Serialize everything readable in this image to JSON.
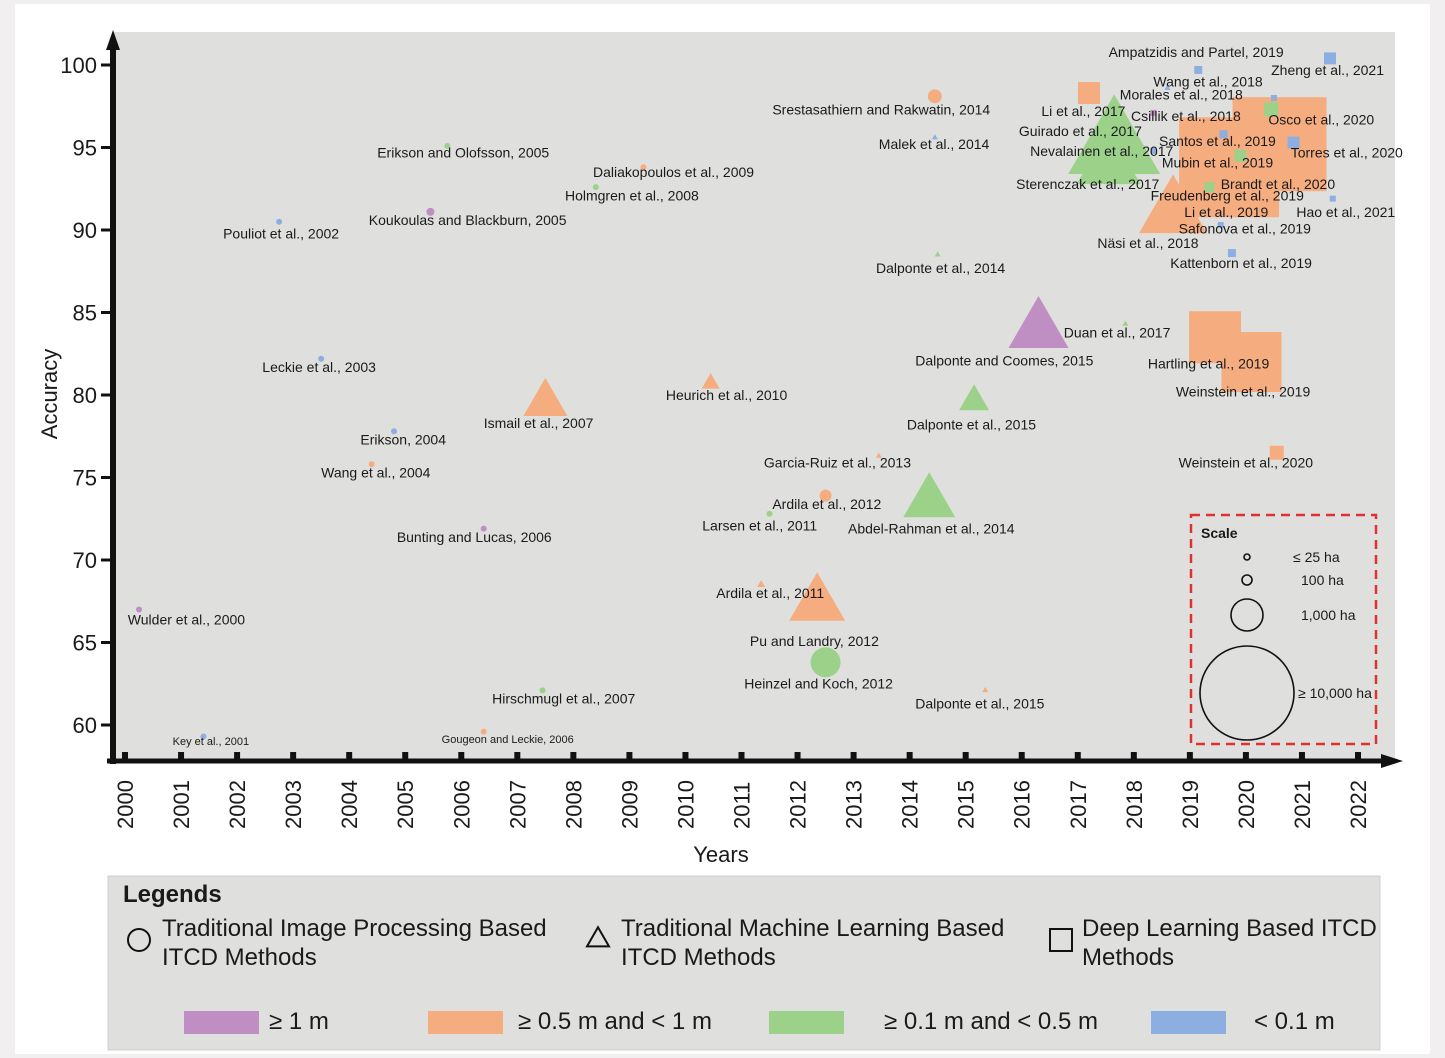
{
  "chart_data": {
    "type": "scatter",
    "xlabel": "Years",
    "ylabel": "Accuracy",
    "x_ticks": [
      "2000",
      "2001",
      "2002",
      "2003",
      "2004",
      "2005",
      "2006",
      "2007",
      "2008",
      "2009",
      "2010",
      "2011",
      "2012",
      "2013",
      "2014",
      "2015",
      "2016",
      "2017",
      "2018",
      "2019",
      "2020",
      "2021",
      "2022"
    ],
    "y_ticks": [
      60,
      65,
      70,
      75,
      80,
      85,
      90,
      95,
      100
    ],
    "xlim": [
      2000,
      2022
    ],
    "ylim": [
      60,
      100
    ],
    "colors": {
      "ge1m": "#bf8fc4",
      "ge05m": "#f5ad80",
      "ge01m": "#9cd18a",
      "lt01m": "#8daee0",
      "plot_bg": "#dfe0de",
      "scale_border": "#e03030"
    },
    "points": [
      {
        "label": "Wulder et al., 2000",
        "year": 2000.25,
        "accuracy": 67.0,
        "shape": "circle",
        "color": "ge1m",
        "size": 3
      },
      {
        "label": "Key et al., 2001",
        "year": 2001.4,
        "accuracy": 59.3,
        "shape": "circle",
        "color": "lt01m",
        "size": 3,
        "small": true
      },
      {
        "label": "Pouliot et al., 2002",
        "year": 2002.75,
        "accuracy": 90.5,
        "shape": "circle",
        "color": "lt01m",
        "size": 3
      },
      {
        "label": "Leckie et al., 2003",
        "year": 2003.5,
        "accuracy": 82.2,
        "shape": "circle",
        "color": "lt01m",
        "size": 3
      },
      {
        "label": "Erikson, 2004",
        "year": 2004.8,
        "accuracy": 77.8,
        "shape": "circle",
        "color": "lt01m",
        "size": 3
      },
      {
        "label": "Wang et al., 2004",
        "year": 2004.4,
        "accuracy": 75.8,
        "shape": "circle",
        "color": "ge05m",
        "size": 3
      },
      {
        "label": "Erikson and Olofsson, 2005",
        "year": 2005.75,
        "accuracy": 95.1,
        "shape": "circle",
        "color": "ge01m",
        "size": 3
      },
      {
        "label": "Koukoulas and Blackburn, 2005",
        "year": 2005.45,
        "accuracy": 91.1,
        "shape": "circle",
        "color": "ge1m",
        "size": 4
      },
      {
        "label": "Bunting and Lucas, 2006",
        "year": 2006.4,
        "accuracy": 71.9,
        "shape": "circle",
        "color": "ge1m",
        "size": 3
      },
      {
        "label": "Gougeon and Leckie, 2006",
        "year": 2006.4,
        "accuracy": 59.6,
        "shape": "circle",
        "color": "ge05m",
        "size": 3,
        "small": true
      },
      {
        "label": "Hirschmugl et al., 2007",
        "year": 2007.45,
        "accuracy": 62.1,
        "shape": "circle",
        "color": "ge01m",
        "size": 3
      },
      {
        "label": "Ismail et al., 2007",
        "year": 2007.5,
        "accuracy": 79.5,
        "shape": "triangle",
        "color": "ge05m",
        "size": 22
      },
      {
        "label": "Holmgren et al., 2008",
        "year": 2008.4,
        "accuracy": 92.6,
        "shape": "circle",
        "color": "ge01m",
        "size": 3
      },
      {
        "label": "Daliakopoulos et al., 2009",
        "year": 2009.25,
        "accuracy": 93.8,
        "shape": "circle",
        "color": "ge05m",
        "size": 3
      },
      {
        "label": "Heurich et al., 2010",
        "year": 2010.45,
        "accuracy": 80.7,
        "shape": "triangle",
        "color": "ge05m",
        "size": 9
      },
      {
        "label": "Ardila et al., 2011",
        "year": 2011.35,
        "accuracy": 68.5,
        "shape": "triangle",
        "color": "ge05m",
        "size": 4
      },
      {
        "label": "Larsen et al., 2011",
        "year": 2011.5,
        "accuracy": 72.8,
        "shape": "circle",
        "color": "ge01m",
        "size": 3
      },
      {
        "label": "Ardila et al., 2012",
        "year": 2012.5,
        "accuracy": 73.9,
        "shape": "circle",
        "color": "ge05m",
        "size": 6
      },
      {
        "label": "Pu and Landry, 2012",
        "year": 2012.35,
        "accuracy": 67.3,
        "shape": "triangle",
        "color": "ge05m",
        "size": 28
      },
      {
        "label": "Heinzel and Koch, 2012",
        "year": 2012.5,
        "accuracy": 63.8,
        "shape": "circle",
        "color": "ge01m",
        "size": 15
      },
      {
        "label": "Garcia-Ruiz et al., 2013",
        "year": 2013.45,
        "accuracy": 76.3,
        "shape": "triangle",
        "color": "ge05m",
        "size": 3
      },
      {
        "label": "Abdel-Rahman et al., 2014",
        "year": 2014.35,
        "accuracy": 73.5,
        "shape": "triangle",
        "color": "ge01m",
        "size": 26
      },
      {
        "label": "Srestasathiern and Rakwatin, 2014",
        "year": 2014.45,
        "accuracy": 98.1,
        "shape": "circle",
        "color": "ge05m",
        "size": 7
      },
      {
        "label": "Malek et al., 2014",
        "year": 2014.45,
        "accuracy": 95.6,
        "shape": "triangle",
        "color": "lt01m",
        "size": 3
      },
      {
        "label": "Dalponte et al., 2014",
        "year": 2014.5,
        "accuracy": 88.5,
        "shape": "triangle",
        "color": "ge01m",
        "size": 3
      },
      {
        "label": "Dalponte et al., 2015",
        "year": 2015.15,
        "accuracy": 79.6,
        "shape": "triangle",
        "color": "ge01m",
        "size": 15
      },
      {
        "label": "Dalponte et al., 2015",
        "year": 2015.35,
        "accuracy": 62.1,
        "shape": "triangle",
        "color": "ge05m",
        "size": 3
      },
      {
        "label": "Dalponte and Coomes, 2015",
        "year": 2016.3,
        "accuracy": 83.9,
        "shape": "triangle",
        "color": "ge1m",
        "size": 30
      },
      {
        "label": "Duan et al., 2017",
        "year": 2017.85,
        "accuracy": 84.3,
        "shape": "triangle",
        "color": "ge01m",
        "size": 3
      },
      {
        "label": "Li et al., 2017",
        "year": 2017.2,
        "accuracy": 98.3,
        "shape": "square",
        "color": "ge05m",
        "size": 11
      },
      {
        "label": "Guirado et al., 2017",
        "year": 2017.25,
        "accuracy": 95.0,
        "shape": "square",
        "color": "ge01m",
        "size": 3
      },
      {
        "label": "Nevalainen et al., 2017",
        "year": 2017.55,
        "accuracy": 93.9,
        "shape": "triangle",
        "color": "ge01m",
        "size": 32
      },
      {
        "label": "Sterenczak et al., 2017",
        "year": 2017.65,
        "accuracy": 95.0,
        "shape": "triangle",
        "color": "ge01m",
        "size": 46
      },
      {
        "label": "Wang et al., 2018",
        "year": 2018.6,
        "accuracy": 98.6,
        "shape": "triangle",
        "color": "lt01m",
        "size": 3
      },
      {
        "label": "Morales et al., 2018",
        "year": 2018.35,
        "accuracy": 97.1,
        "shape": "square",
        "color": "ge1m",
        "size": 3
      },
      {
        "label": "Csillik et al., 2018",
        "year": 2018.35,
        "accuracy": 94.8,
        "shape": "square",
        "color": "lt01m",
        "size": 3
      },
      {
        "label": "Näsi et al., 2018",
        "year": 2018.7,
        "accuracy": 91.0,
        "shape": "triangle",
        "color": "ge05m",
        "size": 34
      },
      {
        "label": "Ampatzidis and Partel, 2019",
        "year": 2019.15,
        "accuracy": 99.7,
        "shape": "square",
        "color": "lt01m",
        "size": 4
      },
      {
        "label": "Santos et al., 2019",
        "year": 2019.6,
        "accuracy": 95.8,
        "shape": "square",
        "color": "lt01m",
        "size": 4
      },
      {
        "label": "Mubin et al., 2019",
        "year": 2019.9,
        "accuracy": 94.5,
        "shape": "square",
        "color": "ge01m",
        "size": 6
      },
      {
        "label": "Freudenberg et al., 2019",
        "year": 2019.7,
        "accuracy": 93.8,
        "shape": "square",
        "color": "ge05m",
        "size": 50
      },
      {
        "label": "Li et al., 2019",
        "year": 2019.35,
        "accuracy": 92.6,
        "shape": "square",
        "color": "ge01m",
        "size": 5
      },
      {
        "label": "Safonova et al., 2019",
        "year": 2019.55,
        "accuracy": 90.3,
        "shape": "square",
        "color": "lt01m",
        "size": 3
      },
      {
        "label": "Kattenborn et al., 2019",
        "year": 2019.75,
        "accuracy": 88.6,
        "shape": "square",
        "color": "lt01m",
        "size": 4
      },
      {
        "label": "Hartling et al., 2019",
        "year": 2019.45,
        "accuracy": 83.5,
        "shape": "square",
        "color": "ge05m",
        "size": 26
      },
      {
        "label": "Weinstein et al., 2019",
        "year": 2020.1,
        "accuracy": 82.0,
        "shape": "square",
        "color": "ge05m",
        "size": 30
      },
      {
        "label": "Zheng et al., 2021",
        "year": 2020.45,
        "accuracy": 97.3,
        "shape": "square",
        "color": "ge01m",
        "size": 7
      },
      {
        "label": "Osco et al., 2020",
        "year": 2020.6,
        "accuracy": 95.2,
        "shape": "square",
        "color": "ge05m",
        "size": 47
      },
      {
        "label": "Torres et al., 2020",
        "year": 2020.85,
        "accuracy": 95.3,
        "shape": "square",
        "color": "lt01m",
        "size": 6
      },
      {
        "label": "Brandt et al., 2020",
        "year": 2020.5,
        "accuracy": 98.0,
        "shape": "square",
        "color": "lt01m",
        "size": 3
      },
      {
        "label": "Weinstein et al., 2020",
        "year": 2020.55,
        "accuracy": 76.5,
        "shape": "square",
        "color": "ge05m",
        "size": 7
      },
      {
        "label": "Hao et al., 2021",
        "year": 2021.55,
        "accuracy": 91.9,
        "shape": "square",
        "color": "lt01m",
        "size": 3
      },
      {
        "label": "",
        "year": 2021.5,
        "accuracy": 100.4,
        "shape": "square",
        "color": "lt01m",
        "size": 6
      }
    ],
    "labels": [
      {
        "text": "Wulder et al., 2000",
        "x": 2000.05,
        "y": 66.1
      },
      {
        "text": "Key et al., 2001",
        "x": 2000.85,
        "y": 58.8,
        "small": true
      },
      {
        "text": "Pouliot et al., 2002",
        "x": 2001.75,
        "y": 89.5
      },
      {
        "text": "Leckie et al., 2003",
        "x": 2002.45,
        "y": 81.4
      },
      {
        "text": "Erikson, 2004",
        "x": 2004.2,
        "y": 77.0
      },
      {
        "text": "Wang et al., 2004",
        "x": 2003.5,
        "y": 75.0
      },
      {
        "text": "Erikson and Olofsson, 2005",
        "x": 2004.5,
        "y": 94.4
      },
      {
        "text": "Koukoulas and Blackburn, 2005",
        "x": 2004.35,
        "y": 90.3
      },
      {
        "text": "Bunting and Lucas, 2006",
        "x": 2004.85,
        "y": 71.1
      },
      {
        "text": "Gougeon and Leckie, 2006",
        "x": 2005.65,
        "y": 58.9,
        "small": true
      },
      {
        "text": "Hirschmugl et al., 2007",
        "x": 2006.55,
        "y": 61.3
      },
      {
        "text": "Ismail et al., 2007",
        "x": 2006.4,
        "y": 78.0
      },
      {
        "text": "Holmgren et al., 2008",
        "x": 2007.85,
        "y": 91.8
      },
      {
        "text": "Daliakopoulos et al., 2009",
        "x": 2008.35,
        "y": 93.2
      },
      {
        "text": "Heurich et al., 2010",
        "x": 2009.65,
        "y": 79.7
      },
      {
        "text": "Ardila et al., 2011",
        "x": 2010.55,
        "y": 67.7
      },
      {
        "text": "Larsen et al., 2011",
        "x": 2010.3,
        "y": 71.8
      },
      {
        "text": "Ardila et al., 2012",
        "x": 2011.55,
        "y": 73.1
      },
      {
        "text": "Pu and Landry, 2012",
        "x": 2011.15,
        "y": 64.8
      },
      {
        "text": "Heinzel and Koch, 2012",
        "x": 2011.05,
        "y": 62.2
      },
      {
        "text": "Garcia-Ruiz et al., 2013",
        "x": 2011.4,
        "y": 75.6
      },
      {
        "text": "Abdel-Rahman et al., 2014",
        "x": 2012.9,
        "y": 71.6
      },
      {
        "text": "Srestasathiern and Rakwatin, 2014",
        "x": 2011.55,
        "y": 97.0
      },
      {
        "text": "Malek et al., 2014",
        "x": 2013.45,
        "y": 94.9
      },
      {
        "text": "Dalponte et al., 2014",
        "x": 2013.4,
        "y": 87.4
      },
      {
        "text": "Dalponte et al., 2015",
        "x": 2013.95,
        "y": 77.9
      },
      {
        "text": "Dalponte et al., 2015",
        "x": 2014.1,
        "y": 61.0
      },
      {
        "text": "Dalponte and Coomes, 2015",
        "x": 2014.1,
        "y": 81.8
      },
      {
        "text": "Duan et al., 2017",
        "x": 2016.75,
        "y": 83.5
      },
      {
        "text": "Ampatzidis and Partel, 2019",
        "x": 2017.55,
        "y": 100.5
      },
      {
        "text": "Zheng et al., 2021",
        "x": 2020.45,
        "y": 99.4
      },
      {
        "text": "Wang et al., 2018",
        "x": 2018.35,
        "y": 98.7
      },
      {
        "text": "Morales et al., 2018",
        "x": 2017.75,
        "y": 97.9
      },
      {
        "text": "Li et al., 2017",
        "x": 2016.35,
        "y": 96.9
      },
      {
        "text": "Csillik et al., 2018",
        "x": 2017.95,
        "y": 96.6
      },
      {
        "text": "Guirado et al., 2017",
        "x": 2015.95,
        "y": 95.7
      },
      {
        "text": "Osco et al., 2020",
        "x": 2020.4,
        "y": 96.4
      },
      {
        "text": "Santos et al., 2019",
        "x": 2018.45,
        "y": 95.1
      },
      {
        "text": "Nevalainen et al., 2017",
        "x": 2016.15,
        "y": 94.5
      },
      {
        "text": "Torres et al., 2020",
        "x": 2020.8,
        "y": 94.4
      },
      {
        "text": "Mubin et al., 2019",
        "x": 2018.5,
        "y": 93.8
      },
      {
        "text": "Sterenczak et al., 2017",
        "x": 2015.9,
        "y": 92.5
      },
      {
        "text": "Brandt et al., 2020",
        "x": 2019.55,
        "y": 92.5
      },
      {
        "text": "Freudenberg et al., 2019",
        "x": 2018.3,
        "y": 91.8
      },
      {
        "text": "Li et al., 2019",
        "x": 2018.9,
        "y": 90.8
      },
      {
        "text": "Hao et al., 2021",
        "x": 2020.9,
        "y": 90.8
      },
      {
        "text": "Safonova et al., 2019",
        "x": 2018.8,
        "y": 89.8
      },
      {
        "text": "Näsi et al., 2018",
        "x": 2017.35,
        "y": 88.9
      },
      {
        "text": "Kattenborn et al., 2019",
        "x": 2018.65,
        "y": 87.7
      },
      {
        "text": "Hartling et al., 2019",
        "x": 2018.25,
        "y": 81.6
      },
      {
        "text": "Weinstein et al., 2019",
        "x": 2018.75,
        "y": 79.9
      },
      {
        "text": "Weinstein et al., 2020",
        "x": 2018.8,
        "y": 75.6
      }
    ]
  },
  "scale": {
    "title": "Scale",
    "items": [
      {
        "label": "≤ 25 ha",
        "radius": 3
      },
      {
        "label": "100 ha",
        "radius": 5
      },
      {
        "label": "1,000 ha",
        "radius": 16
      },
      {
        "label": "≥ 10,000 ha",
        "radius": 47
      }
    ]
  },
  "legend": {
    "title": "Legends",
    "shapes": [
      {
        "shape": "circle",
        "line1": "Traditional Image Processing Based",
        "line2": "ITCD Methods"
      },
      {
        "shape": "triangle",
        "line1": "Traditional Machine Learning Based",
        "line2": "ITCD Methods"
      },
      {
        "shape": "square",
        "line1": "Deep Learning Based ITCD",
        "line2": "Methods"
      }
    ],
    "resolutions": [
      {
        "label": "≥ 1 m",
        "color": "ge1m"
      },
      {
        "label": "≥ 0.5 m and < 1 m",
        "color": "ge05m"
      },
      {
        "label": "≥ 0.1 m and < 0.5 m",
        "color": "ge01m"
      },
      {
        "label": "< 0.1 m",
        "color": "lt01m"
      }
    ]
  }
}
